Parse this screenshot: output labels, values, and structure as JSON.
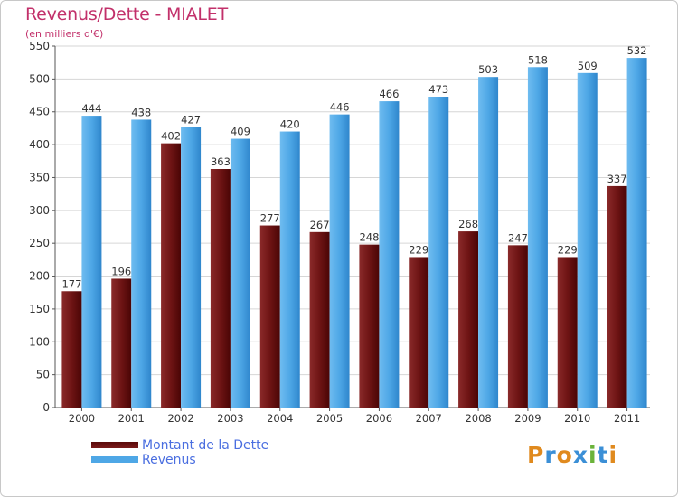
{
  "header": {
    "title": "Revenus/Dette - MIALET",
    "subtitle": "(en milliers d'€)"
  },
  "colors": {
    "dette": "#7a1a1a",
    "revenus": "#4ea7e6",
    "title": "#c2306a",
    "legend_text": "#4a6ee0"
  },
  "legend": {
    "dette_label": "Montant de la Dette",
    "revenus_label": "Revenus"
  },
  "logo": {
    "text": "Proxiti"
  },
  "chart_data": {
    "type": "bar",
    "categories": [
      "2000",
      "2001",
      "2002",
      "2003",
      "2004",
      "2005",
      "2006",
      "2007",
      "2008",
      "2009",
      "2010",
      "2011"
    ],
    "series": [
      {
        "name": "Montant de la Dette",
        "values": [
          177,
          196,
          402,
          363,
          277,
          267,
          248,
          229,
          268,
          247,
          229,
          337
        ]
      },
      {
        "name": "Revenus",
        "values": [
          444,
          438,
          427,
          409,
          420,
          446,
          466,
          473,
          503,
          518,
          509,
          532
        ]
      }
    ],
    "ylim": [
      0,
      550
    ],
    "yticks": [
      0,
      50,
      100,
      150,
      200,
      250,
      300,
      350,
      400,
      450,
      500,
      550
    ],
    "grid": true,
    "legend_position": "bottom-left"
  }
}
